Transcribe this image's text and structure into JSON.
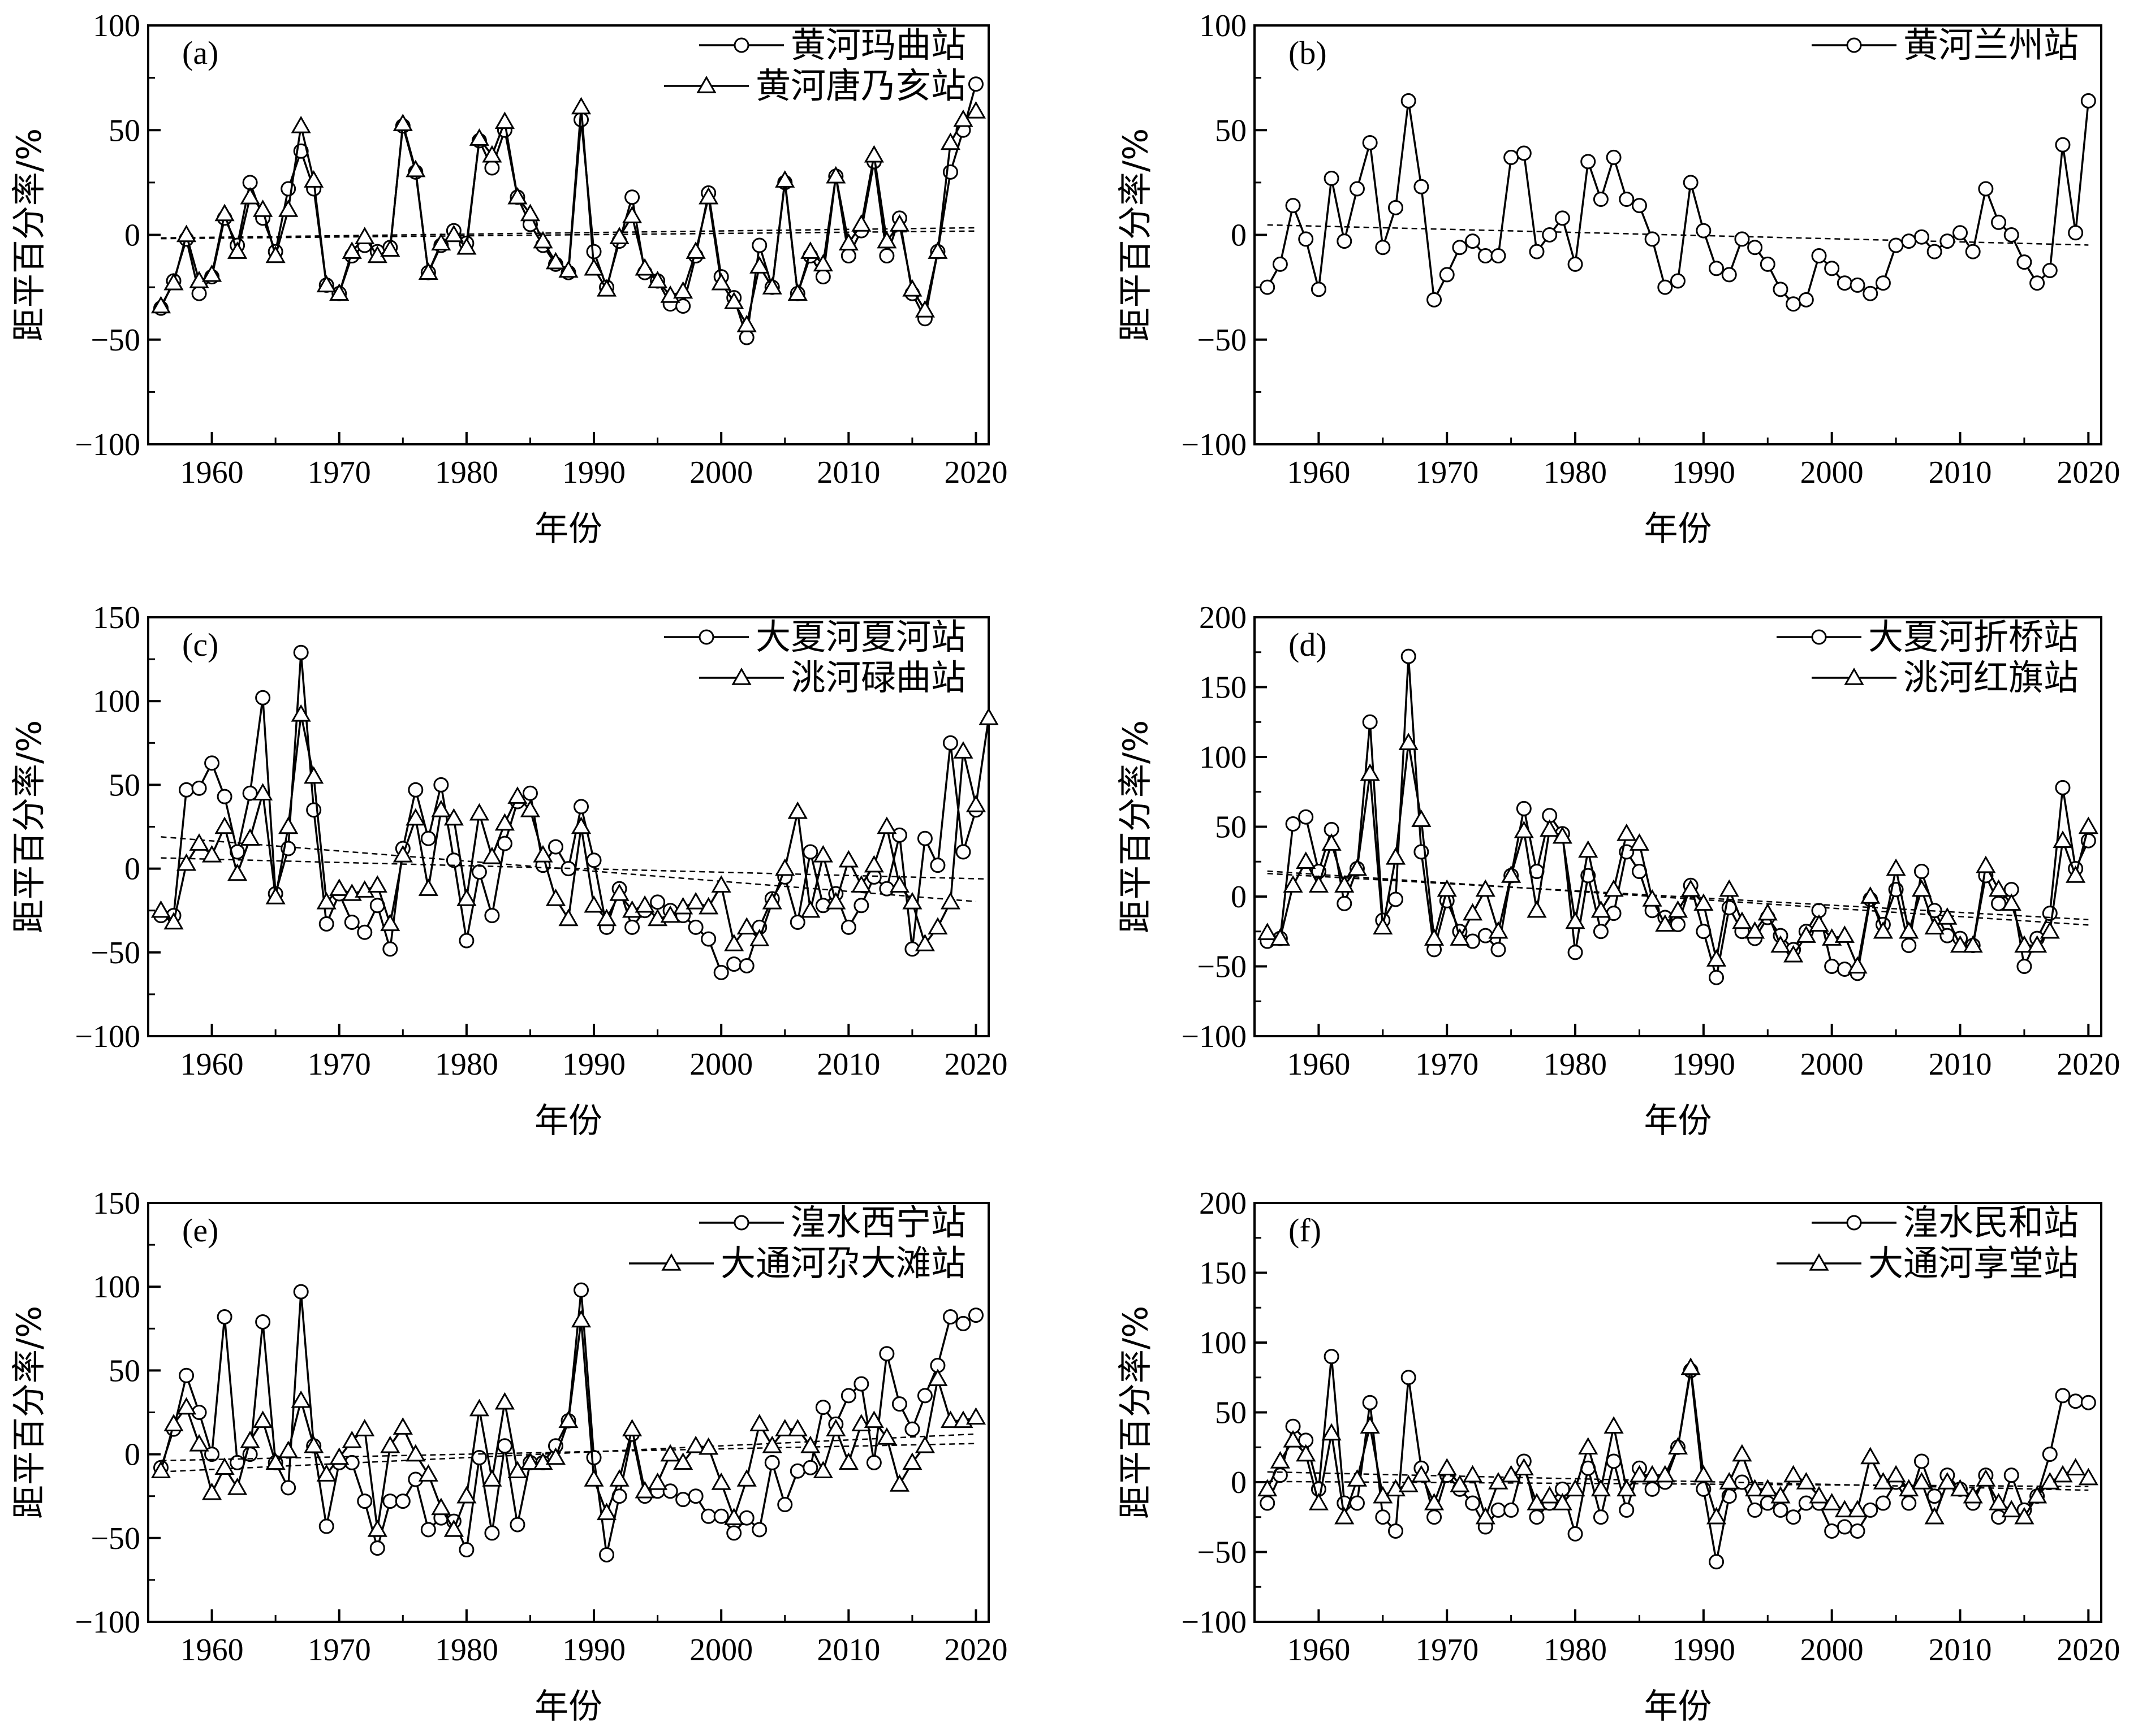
{
  "chart_data": [
    {
      "panel": "(a)",
      "type": "line",
      "xlabel": "年份",
      "ylabel": "距平百分率/%",
      "xlim": [
        1955,
        2021
      ],
      "ylim": [
        -100,
        100
      ],
      "xticks": [
        1960,
        1970,
        1980,
        1990,
        2000,
        2010,
        2020
      ],
      "yticks": [
        -100,
        -50,
        0,
        50,
        100
      ],
      "x_start": 1956,
      "legend_position": "top-right",
      "trend_lines": true,
      "series": [
        {
          "name": "黄河玛曲站",
          "marker": "circle",
          "values": [
            -35,
            -22,
            -2,
            -28,
            -20,
            8,
            -5,
            25,
            8,
            -8,
            22,
            40,
            22,
            -24,
            -28,
            -10,
            -5,
            -8,
            -6,
            52,
            30,
            -18,
            -5,
            2,
            -4,
            45,
            32,
            50,
            18,
            5,
            -5,
            -14,
            -18,
            55,
            -8,
            -25,
            -3,
            18,
            -18,
            -22,
            -33,
            -34,
            -10,
            20,
            -20,
            -30,
            -49,
            -5,
            -25,
            25,
            -28,
            -10,
            -20,
            28,
            -10,
            2,
            35,
            -10,
            8,
            -28,
            -40,
            -8,
            30,
            50,
            72
          ]
        },
        {
          "name": "黄河唐乃亥站",
          "marker": "triangle",
          "values": [
            -34,
            -23,
            0,
            -22,
            -19,
            10,
            -8,
            18,
            12,
            -10,
            12,
            52,
            26,
            -24,
            -28,
            -8,
            -1,
            -10,
            -7,
            53,
            31,
            -18,
            -4,
            0,
            -6,
            46,
            38,
            54,
            18,
            10,
            -3,
            -13,
            -17,
            61,
            -16,
            -26,
            -1,
            9,
            -16,
            -22,
            -29,
            -27,
            -8,
            18,
            -23,
            -32,
            -43,
            -15,
            -25,
            26,
            -28,
            -8,
            -14,
            28,
            -4,
            5,
            38,
            -3,
            5,
            -26,
            -36,
            -8,
            44,
            55,
            59
          ]
        }
      ]
    },
    {
      "panel": "(b)",
      "type": "line",
      "xlabel": "年份",
      "ylabel": "距平百分率/%",
      "xlim": [
        1955,
        2021
      ],
      "ylim": [
        -100,
        100
      ],
      "xticks": [
        1960,
        1970,
        1980,
        1990,
        2000,
        2010,
        2020
      ],
      "yticks": [
        -100,
        -50,
        0,
        50,
        100
      ],
      "x_start": 1956,
      "legend_position": "top-right",
      "trend_lines": true,
      "series": [
        {
          "name": "黄河兰州站",
          "marker": "circle",
          "values": [
            -25,
            -14,
            14,
            -2,
            -26,
            27,
            -3,
            22,
            44,
            -6,
            13,
            64,
            23,
            -31,
            -19,
            -6,
            -3,
            -10,
            -10,
            37,
            39,
            -8,
            0,
            8,
            -14,
            35,
            17,
            37,
            17,
            14,
            -2,
            -25,
            -22,
            25,
            2,
            -16,
            -19,
            -2,
            -6,
            -14,
            -26,
            -33,
            -31,
            -10,
            -16,
            -23,
            -24,
            -28,
            -23,
            -5,
            -3,
            -1,
            -8,
            -3,
            1,
            -8,
            22,
            6,
            0,
            -13,
            -23,
            -17,
            43,
            1,
            64
          ]
        }
      ]
    },
    {
      "panel": "(c)",
      "type": "line",
      "xlabel": "年份",
      "ylabel": "距平百分率/%",
      "xlim": [
        1955,
        2021
      ],
      "ylim": [
        -100,
        150
      ],
      "xticks": [
        1960,
        1970,
        1980,
        1990,
        2000,
        2010,
        2020
      ],
      "yticks": [
        -100,
        -50,
        0,
        50,
        100,
        150
      ],
      "x_start": 1956,
      "legend_position": "top-right",
      "trend_lines": true,
      "series": [
        {
          "name": "大夏河夏河站",
          "marker": "circle",
          "values": [
            -28,
            -28,
            47,
            48,
            63,
            43,
            10,
            45,
            102,
            -15,
            12,
            129,
            35,
            -33,
            -15,
            -32,
            -38,
            -22,
            -48,
            12,
            47,
            18,
            50,
            5,
            -43,
            -2,
            -28,
            15,
            40,
            45,
            2,
            13,
            0,
            37,
            5,
            -35,
            -12,
            -35,
            -25,
            -20,
            -25,
            -28,
            -35,
            -42,
            -62,
            -57,
            -58,
            -35,
            -18,
            -5,
            -32,
            10,
            -22,
            -15,
            -35,
            -22,
            -5,
            -12,
            20,
            -48,
            18,
            2,
            75,
            10,
            35
          ]
        },
        {
          "name": "洮河碌曲站",
          "marker": "triangle",
          "values": [
            -25,
            -32,
            3,
            15,
            8,
            25,
            -3,
            18,
            45,
            -17,
            25,
            92,
            55,
            -20,
            -12,
            -15,
            -13,
            -10,
            -33,
            8,
            30,
            -12,
            35,
            30,
            -18,
            33,
            7,
            27,
            43,
            35,
            8,
            -18,
            -30,
            25,
            -22,
            -30,
            -15,
            -25,
            -22,
            -30,
            -28,
            -23,
            -20,
            -23,
            -10,
            -45,
            -35,
            -42,
            -20,
            0,
            34,
            -25,
            8,
            -20,
            5,
            -10,
            2,
            25,
            -10,
            -20,
            -45,
            -35,
            -20,
            70,
            38,
            90
          ]
        }
      ]
    },
    {
      "panel": "(d)",
      "type": "line",
      "xlabel": "年份",
      "ylabel": "距平百分率/%",
      "xlim": [
        1955,
        2021
      ],
      "ylim": [
        -100,
        200
      ],
      "xticks": [
        1960,
        1970,
        1980,
        1990,
        2000,
        2010,
        2020
      ],
      "yticks": [
        -100,
        -50,
        0,
        50,
        100,
        150,
        200
      ],
      "x_start": 1956,
      "legend_position": "top-right",
      "trend_lines": true,
      "series": [
        {
          "name": "大夏河折桥站",
          "marker": "circle",
          "values": [
            -32,
            -30,
            52,
            57,
            18,
            48,
            -5,
            20,
            125,
            -17,
            -2,
            172,
            32,
            -38,
            -3,
            -25,
            -32,
            -28,
            -38,
            15,
            63,
            18,
            58,
            45,
            -40,
            15,
            -25,
            -12,
            32,
            18,
            -10,
            -15,
            -20,
            8,
            -25,
            -58,
            -8,
            -25,
            -30,
            -15,
            -28,
            -38,
            -25,
            -10,
            -50,
            -52,
            -55,
            -2,
            -20,
            5,
            -35,
            18,
            -10,
            -28,
            -30,
            -35,
            15,
            -5,
            5,
            -50,
            -30,
            -12,
            78,
            20,
            40
          ]
        },
        {
          "name": "洮河红旗站",
          "marker": "triangle",
          "values": [
            -26,
            -30,
            8,
            25,
            8,
            38,
            8,
            20,
            88,
            -22,
            28,
            110,
            55,
            -30,
            5,
            -30,
            -12,
            5,
            -25,
            15,
            47,
            -10,
            48,
            43,
            -18,
            33,
            -10,
            5,
            45,
            38,
            -2,
            -20,
            -10,
            5,
            -5,
            -45,
            5,
            -18,
            -25,
            -12,
            -35,
            -42,
            -28,
            -20,
            -30,
            -28,
            -50,
            0,
            -25,
            20,
            -25,
            5,
            -22,
            -15,
            -35,
            -35,
            22,
            5,
            -5,
            -35,
            -35,
            -25,
            40,
            15,
            50
          ]
        }
      ]
    },
    {
      "panel": "(e)",
      "type": "line",
      "xlabel": "年份",
      "ylabel": "距平百分率/%",
      "xlim": [
        1955,
        2021
      ],
      "ylim": [
        -100,
        150
      ],
      "xticks": [
        1960,
        1970,
        1980,
        1990,
        2000,
        2010,
        2020
      ],
      "yticks": [
        -100,
        -50,
        0,
        50,
        100,
        150
      ],
      "x_start": 1956,
      "legend_position": "top-right",
      "trend_lines": true,
      "series": [
        {
          "name": "湟水西宁站",
          "marker": "circle",
          "values": [
            -8,
            15,
            47,
            25,
            0,
            82,
            -5,
            0,
            79,
            -5,
            -20,
            97,
            5,
            -43,
            -5,
            -5,
            -28,
            -56,
            -28,
            -28,
            -15,
            -45,
            -38,
            -40,
            -57,
            -2,
            -47,
            5,
            -42,
            -5,
            -5,
            5,
            20,
            98,
            -2,
            -60,
            -25,
            12,
            -25,
            -22,
            -22,
            -27,
            -25,
            -37,
            -37,
            -47,
            -38,
            -45,
            -5,
            -30,
            -10,
            -8,
            28,
            18,
            35,
            42,
            -5,
            60,
            30,
            15,
            35,
            53,
            82,
            78,
            83
          ]
        },
        {
          "name": "大通河尕大滩站",
          "marker": "triangle",
          "values": [
            -10,
            18,
            28,
            6,
            -23,
            -8,
            -20,
            8,
            20,
            -5,
            2,
            32,
            5,
            -12,
            -2,
            8,
            15,
            -45,
            5,
            16,
            0,
            -12,
            -32,
            -45,
            -25,
            27,
            -15,
            31,
            -10,
            -5,
            -5,
            -2,
            20,
            80,
            -15,
            -35,
            -15,
            15,
            -22,
            -17,
            0,
            -5,
            5,
            4,
            -17,
            -38,
            -15,
            18,
            5,
            15,
            15,
            5,
            -10,
            15,
            -5,
            18,
            20,
            10,
            -18,
            -5,
            5,
            45,
            20,
            20,
            22
          ]
        }
      ]
    },
    {
      "panel": "(f)",
      "type": "line",
      "xlabel": "年份",
      "ylabel": "距平百分率/%",
      "xlim": [
        1955,
        2021
      ],
      "ylim": [
        -100,
        200
      ],
      "xticks": [
        1960,
        1970,
        1980,
        1990,
        2000,
        2010,
        2020
      ],
      "yticks": [
        -100,
        -50,
        0,
        50,
        100,
        150,
        200
      ],
      "x_start": 1956,
      "legend_position": "top-right",
      "trend_lines": true,
      "series": [
        {
          "name": "湟水民和站",
          "marker": "circle",
          "values": [
            -15,
            5,
            40,
            30,
            -5,
            90,
            -15,
            -15,
            57,
            -25,
            -35,
            75,
            10,
            -25,
            5,
            -5,
            -15,
            -32,
            -20,
            -20,
            15,
            -25,
            -15,
            -5,
            -37,
            10,
            -25,
            15,
            -20,
            10,
            -5,
            0,
            25,
            80,
            -5,
            -57,
            -10,
            0,
            -20,
            -15,
            -20,
            -25,
            -15,
            -15,
            -35,
            -32,
            -35,
            -20,
            -15,
            0,
            -15,
            15,
            -10,
            5,
            -5,
            -15,
            5,
            -25,
            5,
            -20,
            -10,
            20,
            62,
            58,
            57
          ]
        },
        {
          "name": "大通河享堂站",
          "marker": "triangle",
          "values": [
            -5,
            15,
            30,
            20,
            -15,
            35,
            -25,
            2,
            40,
            -10,
            -5,
            -2,
            5,
            -15,
            10,
            -2,
            5,
            -25,
            0,
            5,
            10,
            -15,
            -10,
            -15,
            -5,
            25,
            -5,
            40,
            -5,
            5,
            5,
            5,
            25,
            82,
            5,
            -25,
            0,
            20,
            -5,
            -5,
            -10,
            5,
            0,
            -10,
            -15,
            -20,
            -20,
            18,
            0,
            5,
            -5,
            0,
            -25,
            0,
            -5,
            -10,
            2,
            -15,
            -20,
            -25,
            -10,
            0,
            5,
            10,
            3
          ]
        }
      ]
    }
  ]
}
